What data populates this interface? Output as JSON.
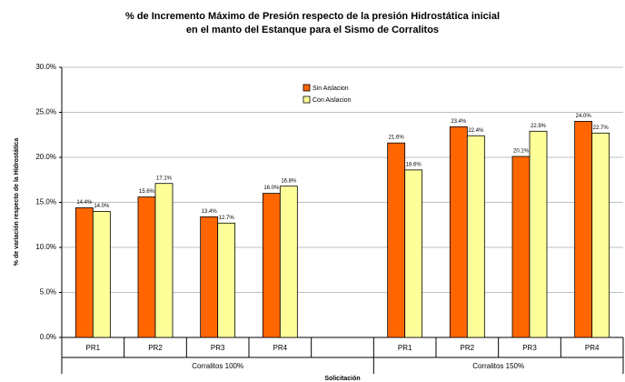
{
  "chart_data": {
    "type": "bar",
    "title": [
      "% de Incremento Máximo de Presión respecto de la presión Hidrostática inicial",
      "en el manto del Estanque para el Sismo de Corralitos"
    ],
    "ylabel": "% de variación respecto de la Hidrostática",
    "xlabel": "Solicitación",
    "categories": [
      "PR1",
      "PR2",
      "PR3",
      "PR4",
      null,
      "PR1",
      "PR2",
      "PR3",
      "PR4"
    ],
    "groups": [
      "Corralitos 100%",
      "Corralitos 150%"
    ],
    "series": [
      {
        "name": "Sin Aislacion",
        "color": "#ff6600",
        "values": [
          14.4,
          15.6,
          13.4,
          16.0,
          null,
          21.6,
          23.4,
          20.1,
          24.0
        ],
        "value_labels": [
          "14.4%",
          "15.6%",
          "13.4%",
          "16.0%",
          null,
          "21.6%",
          "23.4%",
          "20.1%",
          "24.0%"
        ]
      },
      {
        "name": "Con Aislacion",
        "color": "#ffff99",
        "values": [
          14.0,
          17.1,
          12.7,
          16.8,
          null,
          18.6,
          22.4,
          22.9,
          22.7
        ],
        "value_labels": [
          "14.0%",
          "17.1%",
          "12.7%",
          "16.8%",
          null,
          "18.6%",
          "22.4%",
          "22.9%",
          "22.7%"
        ]
      }
    ],
    "ylim": [
      0,
      30
    ],
    "yticks": [
      {
        "value": 0,
        "label": "0.0%"
      },
      {
        "value": 5,
        "label": "5.0%"
      },
      {
        "value": 10,
        "label": "10.0%"
      },
      {
        "value": 15,
        "label": "15.0%"
      },
      {
        "value": 20,
        "label": "20.0%"
      },
      {
        "value": 25,
        "label": "25.0%"
      },
      {
        "value": 30,
        "label": "30.0%"
      }
    ],
    "grid": true,
    "legend": "top"
  }
}
